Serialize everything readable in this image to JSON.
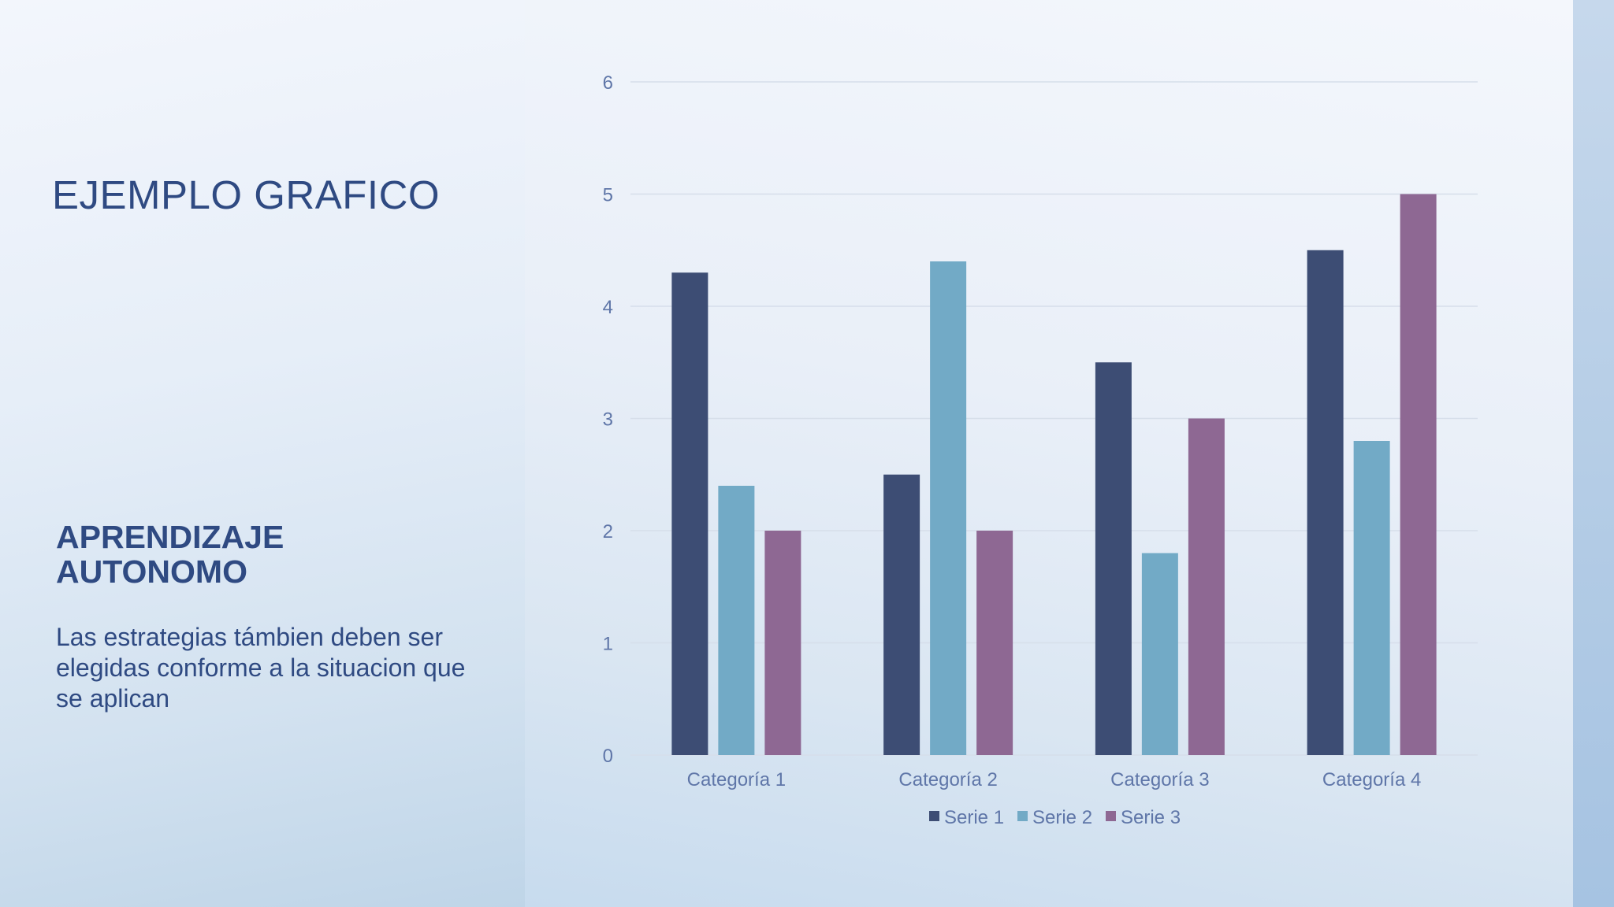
{
  "slide": {
    "title": "EJEMPLO GRAFICO",
    "subheading": "APRENDIZAJE AUTONOMO",
    "body": "Las estrategias támbien deben ser elegidas conforme a la situacion que se aplican"
  },
  "colors": {
    "text": "#2f4a82",
    "axis_text": "#5f76a8",
    "gridline": "#d6deea"
  },
  "chart_data": {
    "type": "bar",
    "categories": [
      "Categoría 1",
      "Categoría 2",
      "Categoría 3",
      "Categoría 4"
    ],
    "series": [
      {
        "name": "Serie 1",
        "color": "#3d4d74",
        "values": [
          4.3,
          2.5,
          3.5,
          4.5
        ]
      },
      {
        "name": "Serie 2",
        "color": "#72aac6",
        "values": [
          2.4,
          4.4,
          1.8,
          2.8
        ]
      },
      {
        "name": "Serie 3",
        "color": "#8e6893",
        "values": [
          2,
          2,
          3,
          5
        ]
      }
    ],
    "ylim": [
      0,
      6
    ],
    "yticks": [
      "0",
      "1",
      "2",
      "3",
      "4",
      "5",
      "6"
    ],
    "grid": true,
    "legend": "bottom",
    "title": "",
    "xlabel": "",
    "ylabel": ""
  }
}
